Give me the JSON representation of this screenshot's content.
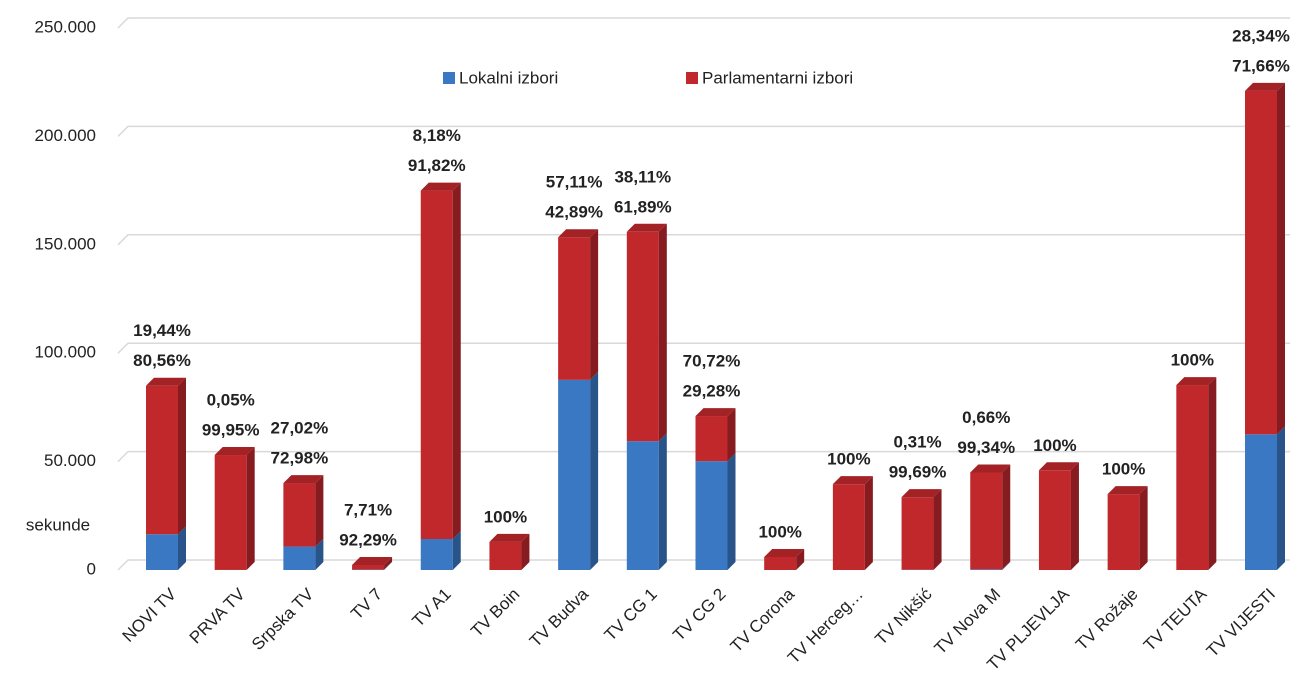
{
  "chart_data": {
    "type": "bar3d_stacked",
    "y_label": "sekunde",
    "categories": [
      "NOVI TV",
      "PRVA TV",
      "Srpska TV",
      "TV 7",
      "TV A1",
      "TV Boin",
      "TV Budva",
      "TV CG 1",
      "TV CG 2",
      "TV Corona",
      "TV Herceg…",
      "TV Nikšić",
      "TV Nova M",
      "TV PLJEVLJA",
      "TV Rožaje",
      "TV TEUTA",
      "TV VIJESTI"
    ],
    "series": [
      {
        "name": "Lokalni izbori",
        "color": "#3b78c3",
        "label_color": "#1f78c8",
        "values": [
          16500,
          30,
          10800,
          180,
          14300,
          0,
          87700,
          59400,
          50200,
          0,
          0,
          100,
          300,
          0,
          0,
          0,
          62600
        ],
        "labels": [
          "19,44%",
          "0,05%",
          "27,02%",
          "7,71%",
          "8,18%",
          null,
          "57,11%",
          "38,11%",
          "70,72%",
          null,
          null,
          "0,31%",
          "0,66%",
          null,
          null,
          null,
          "28,34%"
        ]
      },
      {
        "name": "Parlamentarni izbori",
        "color": "#c0282c",
        "label_color": "#ff0000",
        "values": [
          68500,
          53000,
          29300,
          2120,
          160700,
          13000,
          65800,
          96600,
          20800,
          6000,
          39600,
          33500,
          44700,
          46000,
          35000,
          85300,
          158400
        ],
        "labels": [
          "80,56%",
          "99,95%",
          "72,98%",
          "92,29%",
          "91,82%",
          "100%",
          "42,89%",
          "61,89%",
          "29,28%",
          "100%",
          "100%",
          "99,69%",
          "99,34%",
          "100%",
          "100%",
          "100%",
          "71,66%"
        ]
      }
    ],
    "ylim": [
      0,
      250000
    ],
    "yticks": [
      0,
      {
        "value": 50000,
        "label": "50.000"
      },
      {
        "value": 100000,
        "label": "100.000"
      },
      {
        "value": 150000,
        "label": "150.000"
      },
      {
        "value": 200000,
        "label": "200.000"
      },
      {
        "value": 250000,
        "label": "250.000"
      }
    ],
    "grid": true,
    "legend": "top"
  }
}
